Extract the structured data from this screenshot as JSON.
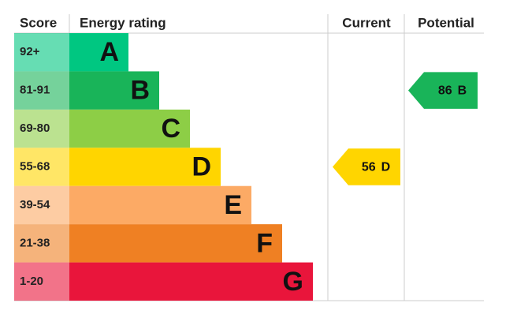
{
  "header": {
    "score": "Score",
    "rating": "Energy rating",
    "current": "Current",
    "potential": "Potential"
  },
  "bands": [
    {
      "range": "92+",
      "letter": "A",
      "color": "#00c781"
    },
    {
      "range": "81-91",
      "letter": "B",
      "color": "#19b459"
    },
    {
      "range": "69-80",
      "letter": "C",
      "color": "#8dce46"
    },
    {
      "range": "55-68",
      "letter": "D",
      "color": "#ffd500"
    },
    {
      "range": "39-54",
      "letter": "E",
      "color": "#fcaa65"
    },
    {
      "range": "21-38",
      "letter": "F",
      "color": "#ef8023"
    },
    {
      "range": "1-20",
      "letter": "G",
      "color": "#e9153b"
    }
  ],
  "current": {
    "value": 56,
    "band": "D"
  },
  "potential": {
    "value": 86,
    "band": "B"
  }
}
